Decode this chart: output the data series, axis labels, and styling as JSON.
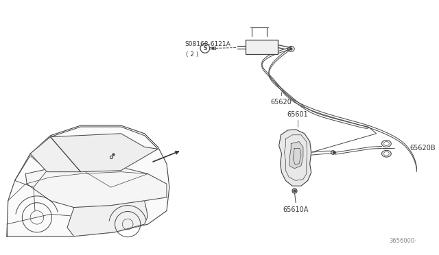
{
  "bg_color": "#ffffff",
  "line_color": "#444444",
  "text_color": "#333333",
  "labels": {
    "part1": "S08168-6121A",
    "part1_sub": "( 2 )",
    "part2": "65620",
    "part3": "65601",
    "part4": "65610A",
    "part5": "65620B",
    "diagram_num": "3656000-"
  },
  "figsize": [
    6.4,
    3.72
  ],
  "dpi": 100
}
